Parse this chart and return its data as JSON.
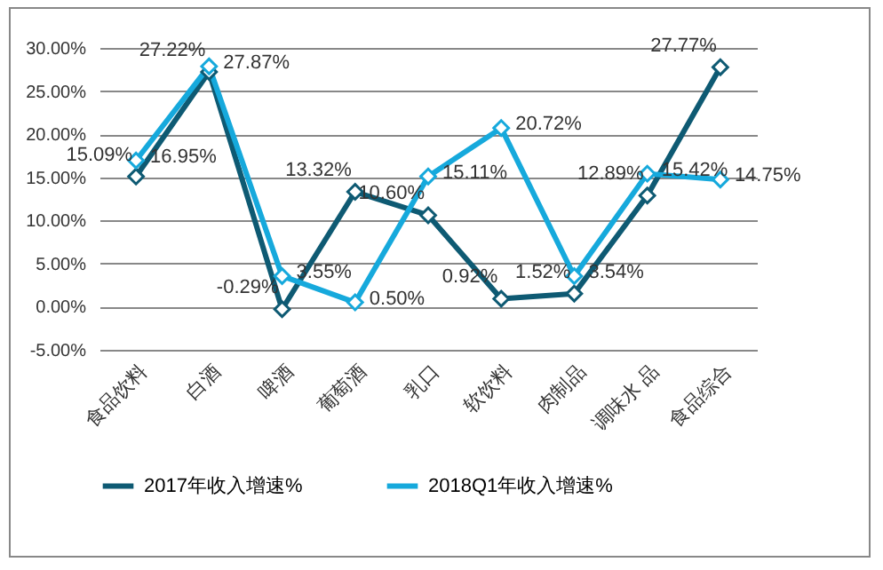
{
  "chart_data": {
    "type": "line",
    "categories": [
      "食品饮料",
      "白酒",
      "啤酒",
      "葡萄酒",
      "乳口",
      "软饮料",
      "肉制品",
      "调味水 品",
      "食品综合"
    ],
    "series": [
      {
        "name": "2017年收入增速%",
        "color": "#0e5a73",
        "values": [
          15.09,
          27.22,
          -0.29,
          13.32,
          10.6,
          0.92,
          1.52,
          12.89,
          27.77
        ],
        "value_labels": [
          "15.09%",
          "27.22%",
          "-0.29%",
          "13.32%",
          "10.60%",
          "0.92%",
          "1.52%",
          "12.89%",
          "27.77%"
        ]
      },
      {
        "name": "2018Q1年收入增速%",
        "color": "#16a9dc",
        "values": [
          16.95,
          27.87,
          3.55,
          0.5,
          15.11,
          20.72,
          3.54,
          15.42,
          14.75
        ],
        "value_labels": [
          "16.95%",
          "27.87%",
          "3.55%",
          "0.50%",
          "15.11%",
          "20.72%",
          "3.54%",
          "15.42%",
          "14.75%"
        ]
      }
    ],
    "ylim": [
      -5,
      30
    ],
    "yticks": [
      {
        "value": -5,
        "label": "-5.00%"
      },
      {
        "value": 0,
        "label": "0.00%"
      },
      {
        "value": 5,
        "label": "5.00%"
      },
      {
        "value": 10,
        "label": "10.00%"
      },
      {
        "value": 15,
        "label": "15.00%"
      },
      {
        "value": 20,
        "label": "20.00%"
      },
      {
        "value": 25,
        "label": "25.00%"
      },
      {
        "value": 30,
        "label": "30.00%"
      }
    ],
    "grid": "y",
    "legend": "bottom",
    "marker": "diamond",
    "line_style": "solid"
  }
}
